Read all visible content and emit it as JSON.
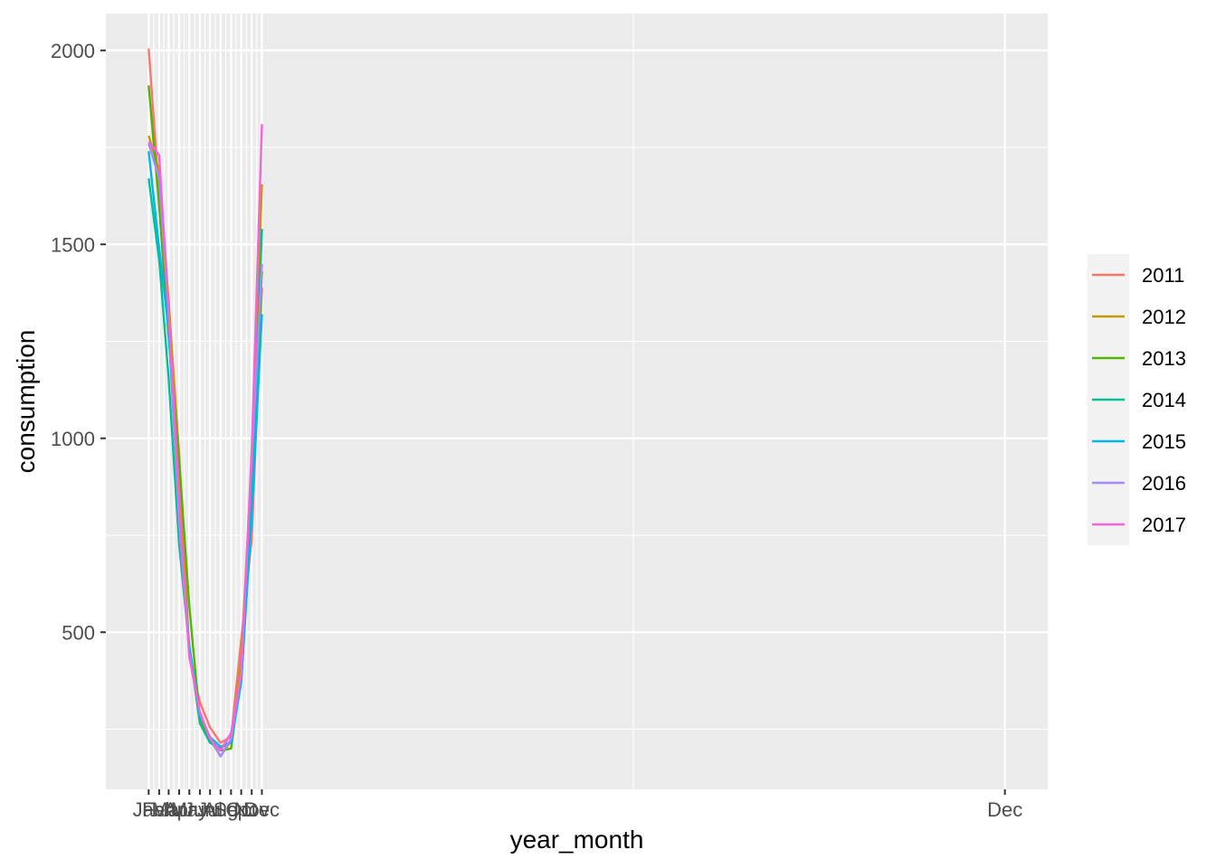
{
  "chart_data": {
    "type": "line",
    "xlabel": "year_month",
    "ylabel": "consumption",
    "x_ticks": [
      "Jan",
      "Feb",
      "Mar",
      "Apr",
      "May",
      "Jun",
      "Jul",
      "Aug",
      "Sep",
      "Oct",
      "Nov",
      "Dec",
      "Dec"
    ],
    "y_ticks": [
      500,
      1000,
      1500,
      2000
    ],
    "ylim": [
      95,
      2095
    ],
    "grid": true,
    "legend_position": "right",
    "series": [
      {
        "name": "2011",
        "color": "#F8766D",
        "x": [
          "2011-01-01",
          "2011-02-01",
          "2011-03-01",
          "2011-04-01",
          "2011-05-01",
          "2011-06-01",
          "2011-07-01",
          "2011-08-01",
          "2011-09-01",
          "2011-10-01",
          "2011-11-01",
          "2011-12-01"
        ],
        "y": [
          2005,
          1630,
          1350,
          960,
          440,
          320,
          255,
          215,
          230,
          480,
          740,
          1390
        ]
      },
      {
        "name": "2012",
        "color": "#C49A00",
        "x": [
          "2012-01-01",
          "2012-02-01",
          "2012-03-01",
          "2012-04-01",
          "2012-05-01",
          "2012-06-01",
          "2012-07-01",
          "2012-08-01",
          "2012-09-01",
          "2012-10-01",
          "2012-11-01",
          "2012-12-01"
        ],
        "y": [
          1780,
          1690,
          1355,
          935,
          445,
          290,
          225,
          180,
          220,
          430,
          940,
          1655
        ]
      },
      {
        "name": "2013",
        "color": "#53B400",
        "x": [
          "2013-01-01",
          "2013-02-01",
          "2013-03-01",
          "2013-04-01",
          "2013-05-01",
          "2013-06-01",
          "2013-07-01",
          "2013-08-01",
          "2013-09-01",
          "2013-10-01",
          "2013-11-01",
          "2013-12-01"
        ],
        "y": [
          1910,
          1600,
          1260,
          945,
          565,
          275,
          220,
          195,
          200,
          390,
          870,
          1430
        ]
      },
      {
        "name": "2014",
        "color": "#00C094",
        "x": [
          "2014-01-01",
          "2014-02-01",
          "2014-03-01",
          "2014-04-01",
          "2014-05-01",
          "2014-06-01",
          "2014-07-01",
          "2014-08-01",
          "2014-09-01",
          "2014-10-01",
          "2014-11-01",
          "2014-12-01"
        ],
        "y": [
          1670,
          1460,
          1155,
          725,
          460,
          265,
          215,
          200,
          220,
          380,
          820,
          1540
        ]
      },
      {
        "name": "2015",
        "color": "#00B6EB",
        "x": [
          "2015-01-01",
          "2015-02-01",
          "2015-03-01",
          "2015-04-01",
          "2015-05-01",
          "2015-06-01",
          "2015-07-01",
          "2015-08-01",
          "2015-09-01",
          "2015-10-01",
          "2015-11-01",
          "2015-12-01"
        ],
        "y": [
          1740,
          1490,
          1280,
          800,
          465,
          285,
          230,
          205,
          215,
          370,
          800,
          1320
        ]
      },
      {
        "name": "2016",
        "color": "#A58AFF",
        "x": [
          "2016-01-01",
          "2016-02-01",
          "2016-03-01",
          "2016-04-01",
          "2016-05-01",
          "2016-06-01",
          "2016-07-01",
          "2016-08-01",
          "2016-09-01",
          "2016-10-01",
          "2016-11-01",
          "2016-12-01"
        ],
        "y": [
          1760,
          1670,
          1320,
          780,
          445,
          290,
          230,
          180,
          225,
          395,
          940,
          1450
        ]
      },
      {
        "name": "2017",
        "color": "#FB61D7",
        "x": [
          "2017-01-01",
          "2017-02-01",
          "2017-03-01",
          "2017-04-01",
          "2017-05-01",
          "2017-06-01",
          "2017-07-01",
          "2017-08-01",
          "2017-09-01",
          "2017-10-01",
          "2017-11-01",
          "2017-12-01"
        ],
        "y": [
          1765,
          1730,
          1330,
          840,
          435,
          295,
          225,
          195,
          240,
          395,
          970,
          1810
        ]
      }
    ]
  }
}
